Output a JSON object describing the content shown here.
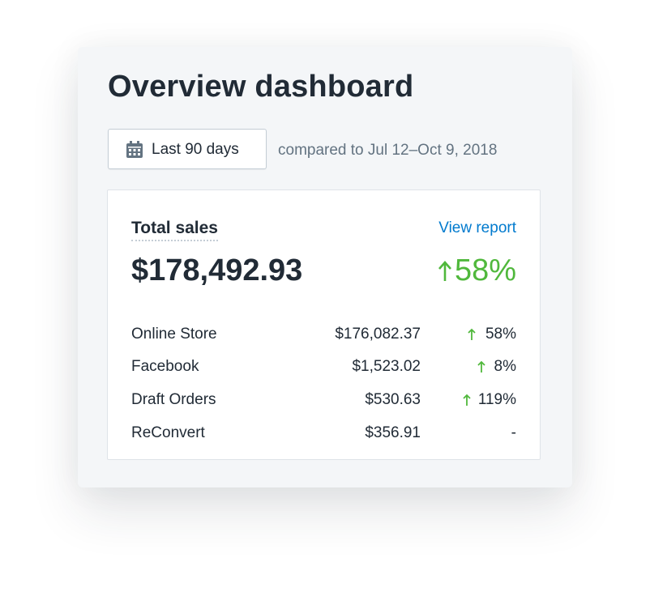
{
  "header": {
    "title": "Overview dashboard"
  },
  "filter": {
    "button": "Last 90 days",
    "comparison": "compared to Jul 12–Oct 9, 2018"
  },
  "card": {
    "title": "Total sales",
    "link": "View report",
    "total": "$178,492.93",
    "total_change": "58%",
    "rows": [
      [
        "Online Store",
        "$176,082.37",
        "58%"
      ],
      [
        "Facebook",
        "$1,523.02",
        "8%"
      ],
      [
        "Draft Orders",
        "$530.63",
        "119%"
      ],
      [
        "ReConvert",
        "$356.91",
        "-"
      ]
    ]
  }
}
